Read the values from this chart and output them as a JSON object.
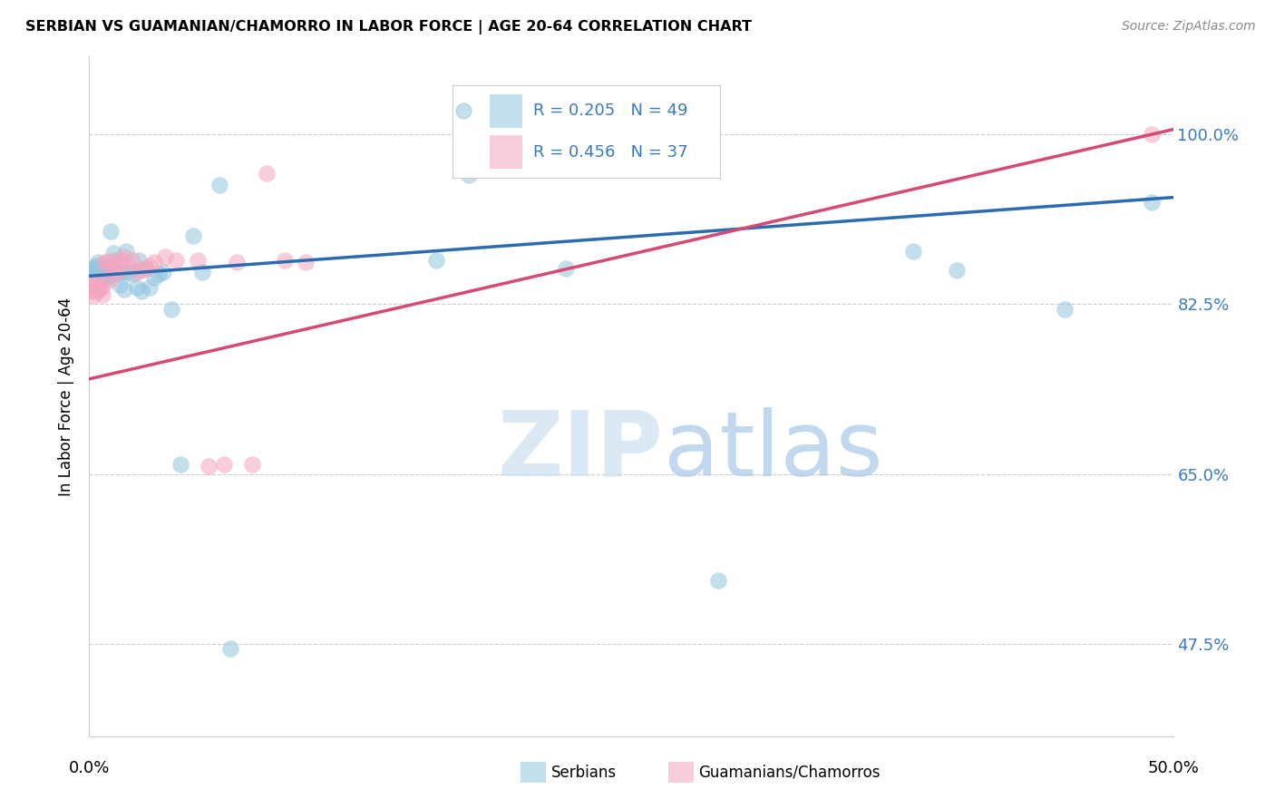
{
  "title": "SERBIAN VS GUAMANIAN/CHAMORRO IN LABOR FORCE | AGE 20-64 CORRELATION CHART",
  "source": "Source: ZipAtlas.com",
  "ylabel": "In Labor Force | Age 20-64",
  "yticks": [
    "47.5%",
    "65.0%",
    "82.5%",
    "100.0%"
  ],
  "ytick_values": [
    0.475,
    0.65,
    0.825,
    1.0
  ],
  "xlim": [
    0.0,
    0.5
  ],
  "ylim": [
    0.38,
    1.08
  ],
  "legend_serbian_R": "0.205",
  "legend_serbian_N": "49",
  "legend_guam_R": "0.456",
  "legend_guam_N": "37",
  "legend_label1": "Serbians",
  "legend_label2": "Guamanians/Chamorros",
  "serbian_color": "#92c5de",
  "guam_color": "#f4a6c0",
  "trendline_serbian_color": "#2b6cb0",
  "trendline_guam_color": "#d44a72",
  "serbian_x": [
    0.001,
    0.002,
    0.003,
    0.003,
    0.004,
    0.004,
    0.005,
    0.005,
    0.006,
    0.006,
    0.006,
    0.007,
    0.007,
    0.008,
    0.008,
    0.009,
    0.01,
    0.01,
    0.011,
    0.012,
    0.013,
    0.014,
    0.015,
    0.016,
    0.017,
    0.018,
    0.02,
    0.022,
    0.023,
    0.024,
    0.026,
    0.028,
    0.03,
    0.032,
    0.034,
    0.038,
    0.042,
    0.048,
    0.052,
    0.06,
    0.065,
    0.16,
    0.175,
    0.22,
    0.29,
    0.38,
    0.4,
    0.45,
    0.49
  ],
  "serbian_y": [
    0.86,
    0.862,
    0.858,
    0.865,
    0.856,
    0.868,
    0.858,
    0.862,
    0.852,
    0.858,
    0.865,
    0.855,
    0.86,
    0.852,
    0.856,
    0.854,
    0.9,
    0.862,
    0.878,
    0.87,
    0.856,
    0.845,
    0.858,
    0.84,
    0.88,
    0.858,
    0.856,
    0.842,
    0.87,
    0.838,
    0.862,
    0.842,
    0.852,
    0.856,
    0.858,
    0.82,
    0.66,
    0.895,
    0.858,
    0.948,
    0.47,
    0.87,
    0.958,
    0.862,
    0.54,
    0.88,
    0.86,
    0.82,
    0.93
  ],
  "guam_x": [
    0.001,
    0.001,
    0.002,
    0.002,
    0.003,
    0.003,
    0.004,
    0.005,
    0.006,
    0.006,
    0.007,
    0.008,
    0.009,
    0.01,
    0.011,
    0.012,
    0.013,
    0.015,
    0.016,
    0.018,
    0.02,
    0.022,
    0.024,
    0.026,
    0.028,
    0.03,
    0.035,
    0.04,
    0.05,
    0.055,
    0.062,
    0.068,
    0.075,
    0.082,
    0.09,
    0.1,
    0.49
  ],
  "guam_y": [
    0.838,
    0.848,
    0.834,
    0.844,
    0.838,
    0.848,
    0.842,
    0.84,
    0.844,
    0.835,
    0.868,
    0.868,
    0.85,
    0.862,
    0.87,
    0.858,
    0.858,
    0.87,
    0.874,
    0.865,
    0.87,
    0.858,
    0.86,
    0.862,
    0.865,
    0.868,
    0.874,
    0.87,
    0.87,
    0.658,
    0.66,
    0.868,
    0.66,
    0.96,
    0.87,
    0.868,
    1.0
  ]
}
